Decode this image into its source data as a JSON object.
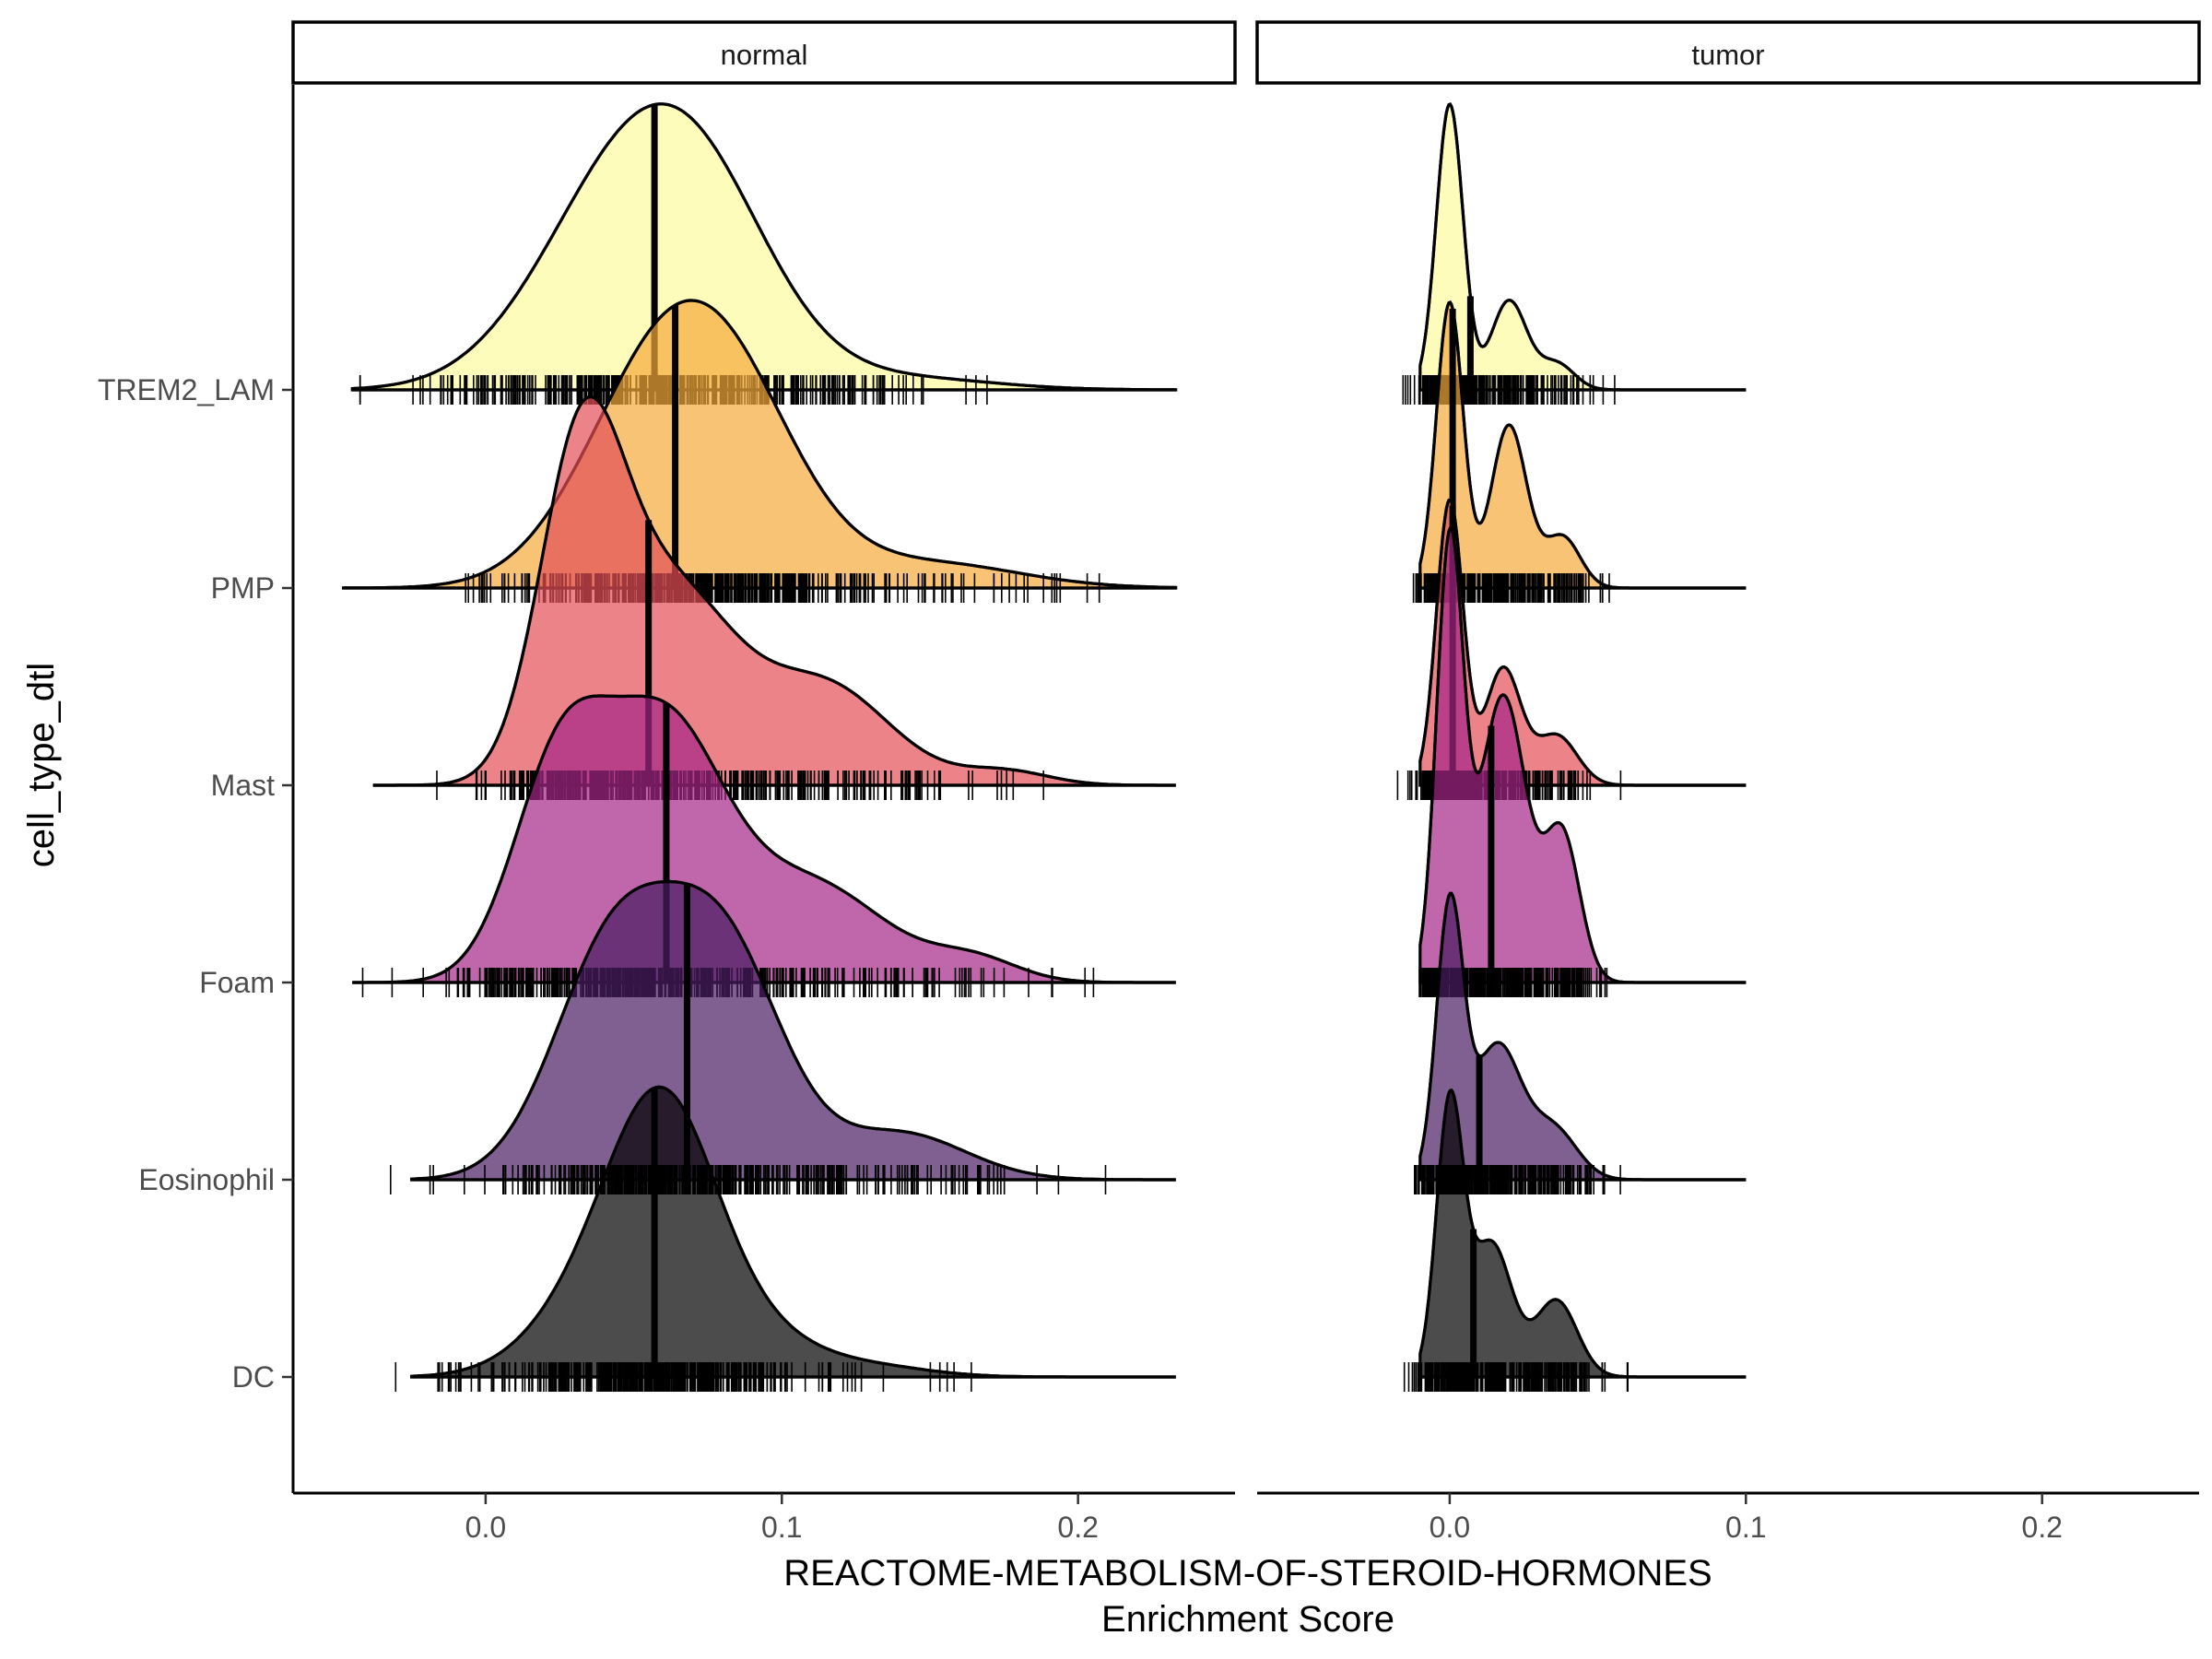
{
  "chart_data": {
    "type": "ridgeline",
    "title": "",
    "xlabel": "REACTOME-METABOLISM-OF-STEROID-HORMONES",
    "xlabel_sub": "Enrichment Score",
    "ylabel": "cell_type_dtl",
    "xlim": [
      -0.065,
      0.253
    ],
    "x_ticks": [
      0.0,
      0.1,
      0.2
    ],
    "x_tick_labels": [
      "0.0",
      "0.1",
      "0.2"
    ],
    "grid": false,
    "legend": "none",
    "categories": [
      "TREM2_LAM",
      "PMP",
      "Mast",
      "Foam",
      "Eosinophil",
      "DC"
    ],
    "colors": {
      "TREM2_LAM": "#FCFB9D",
      "PMP": "#F7A93C",
      "Mast": "#E24E55",
      "Foam": "#A52587",
      "Eosinophil": "#481D63",
      "DC": "#000000"
    },
    "panels": [
      {
        "strip": "normal",
        "series": [
          {
            "name": "TREM2_LAM",
            "median": 0.057,
            "range": [
              -0.045,
              0.233
            ],
            "peak": 0.058,
            "components": [
              [
                0.5,
                0.042,
                0.028
              ],
              [
                0.5,
                0.072,
                0.026
              ],
              [
                0.04,
                0.14,
                0.03
              ]
            ]
          },
          {
            "name": "PMP",
            "median": 0.064,
            "range": [
              -0.048,
              0.233
            ],
            "peak": 0.066,
            "components": [
              [
                0.55,
                0.058,
                0.026
              ],
              [
                0.35,
                0.085,
                0.024
              ],
              [
                0.08,
                0.15,
                0.03
              ]
            ]
          },
          {
            "name": "Mast",
            "median": 0.055,
            "range": [
              -0.038,
              0.233
            ],
            "peak": 0.052,
            "components": [
              [
                0.4,
                0.032,
                0.014
              ],
              [
                0.4,
                0.062,
                0.022
              ],
              [
                0.2,
                0.115,
                0.022
              ],
              [
                0.02,
                0.175,
                0.015
              ]
            ]
          },
          {
            "name": "Foam",
            "median": 0.061,
            "range": [
              -0.045,
              0.233
            ],
            "peak": 0.055,
            "components": [
              [
                0.3,
                0.025,
                0.016
              ],
              [
                0.45,
                0.06,
                0.02
              ],
              [
                0.22,
                0.11,
                0.025
              ],
              [
                0.03,
                0.165,
                0.015
              ]
            ]
          },
          {
            "name": "Eosinophil",
            "median": 0.068,
            "range": [
              -0.025,
              0.233
            ],
            "peak": 0.075,
            "components": [
              [
                0.45,
                0.043,
                0.02
              ],
              [
                0.45,
                0.08,
                0.02
              ],
              [
                0.1,
                0.14,
                0.022
              ]
            ]
          },
          {
            "name": "DC",
            "median": 0.057,
            "range": [
              -0.025,
              0.233
            ],
            "peak": 0.055,
            "components": [
              [
                0.2,
                0.035,
                0.02
              ],
              [
                0.65,
                0.06,
                0.018
              ],
              [
                0.12,
                0.09,
                0.02
              ],
              [
                0.03,
                0.13,
                0.02
              ]
            ]
          }
        ]
      },
      {
        "strip": "tumor",
        "series": [
          {
            "name": "TREM2_LAM",
            "median": 0.007,
            "range": [
              -0.01,
              0.1
            ],
            "peak": 0.0,
            "components": [
              [
                0.65,
                0.0,
                0.0045
              ],
              [
                0.27,
                0.02,
                0.006
              ],
              [
                0.08,
                0.036,
                0.006
              ]
            ]
          },
          {
            "name": "PMP",
            "median": 0.001,
            "range": [
              -0.01,
              0.1
            ],
            "peak": 0.0,
            "components": [
              [
                0.5,
                0.0,
                0.0045
              ],
              [
                0.38,
                0.02,
                0.006
              ],
              [
                0.12,
                0.038,
                0.006
              ]
            ]
          },
          {
            "name": "Mast",
            "median": 0.001,
            "range": [
              -0.01,
              0.1
            ],
            "peak": 0.0,
            "components": [
              [
                0.55,
                0.0,
                0.0045
              ],
              [
                0.3,
                0.018,
                0.006
              ],
              [
                0.15,
                0.036,
                0.007
              ]
            ]
          },
          {
            "name": "Foam",
            "median": 0.014,
            "range": [
              -0.01,
              0.1
            ],
            "peak": 0.019,
            "components": [
              [
                0.38,
                0.0,
                0.0045
              ],
              [
                0.45,
                0.018,
                0.008
              ],
              [
                0.17,
                0.038,
                0.006
              ]
            ]
          },
          {
            "name": "Eosinophil",
            "median": 0.01,
            "range": [
              -0.01,
              0.1
            ],
            "peak": 0.0,
            "components": [
              [
                0.45,
                0.0,
                0.0045
              ],
              [
                0.4,
                0.016,
                0.008
              ],
              [
                0.15,
                0.035,
                0.008
              ]
            ]
          },
          {
            "name": "DC",
            "median": 0.008,
            "range": [
              -0.01,
              0.1
            ],
            "peak": 0.0,
            "components": [
              [
                0.45,
                0.0,
                0.0045
              ],
              [
                0.35,
                0.014,
                0.007
              ],
              [
                0.2,
                0.036,
                0.007
              ]
            ]
          }
        ]
      }
    ]
  }
}
